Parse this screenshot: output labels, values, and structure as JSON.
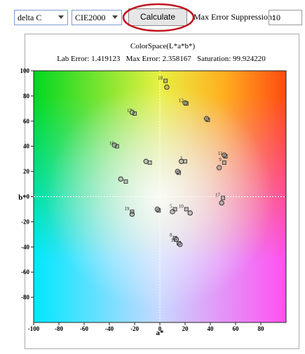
{
  "toolbar": {
    "metric": "delta C",
    "formula": "CIE2000",
    "button": "Calculate",
    "suppression_label": "Max Error Suppression:",
    "suppression_value": "10"
  },
  "chart_data": {
    "type": "scatter",
    "title": "ColorSpace(L*a*b*)",
    "subtitle": "Lab Error: 1.419123   Max Error: 2.358167   Saturation: 99.924220",
    "xlabel": "a*",
    "ylabel": "b*",
    "xlim": [
      -100,
      100
    ],
    "ylim": [
      -100,
      100
    ],
    "xticks": [
      -100,
      -80,
      -60,
      -40,
      -20,
      0,
      20,
      40,
      60,
      80
    ],
    "yticks": [
      100,
      80,
      60,
      40,
      20,
      0,
      -20,
      -40,
      -60,
      -80
    ],
    "zero_lines": true,
    "series": [
      {
        "marker": "square",
        "color": "#444444",
        "x": [
          4.5,
          21,
          38,
          -20,
          -34,
          -8,
          20,
          15,
          52,
          51,
          -27,
          50,
          -1,
          12,
          21,
          -22,
          12,
          15
        ],
        "y": [
          92,
          74,
          61,
          66,
          40,
          27,
          28,
          19,
          32,
          27,
          12,
          -1,
          -11,
          -10,
          -10,
          -12,
          -33,
          -37
        ],
        "labels": [
          "18",
          "12",
          null,
          "17",
          "16",
          null,
          "3",
          null,
          "11",
          "9",
          null,
          "17",
          null,
          "5",
          "10",
          "19",
          "8",
          "12"
        ]
      },
      {
        "marker": "circle",
        "color": "#333333",
        "x": [
          5.5,
          20,
          37,
          -22,
          -36,
          -11,
          17,
          14,
          51,
          47,
          -31,
          49,
          -2,
          10,
          24,
          -22,
          13,
          16
        ],
        "y": [
          87,
          74.5,
          62,
          67,
          41,
          28,
          28,
          20,
          33,
          23,
          14,
          -5,
          -10,
          -12,
          -13,
          -14,
          -34,
          -38
        ]
      }
    ]
  }
}
